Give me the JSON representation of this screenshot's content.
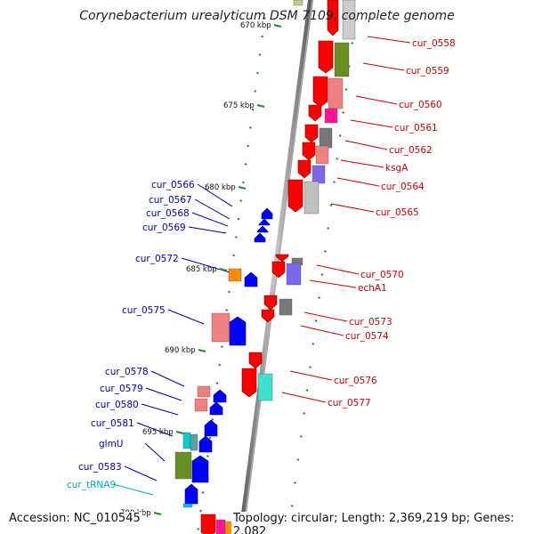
{
  "title": "Corynebacterium urealyticum DSM 7109, complete genome",
  "accession": "Accession: NC_010545",
  "topology": "Topology: circular; Length: 2,369,219 bp; Genes: 2,082",
  "kbp_labels": [
    "670 kbp",
    "675 kbp",
    "680 kbp",
    "685 kbp",
    "690 kbp",
    "695 kbp",
    "700 kbp"
  ],
  "right_genes": [
    "cur_0558",
    "cur_0559",
    "cur_0560",
    "cur_0561",
    "cur_0562",
    "ksgA",
    "cur_0564",
    "cur_0565",
    "cur_0570",
    "echA1",
    "cur_0573",
    "cur_0574",
    "cur_0576",
    "cur_0577"
  ],
  "left_genes": [
    "cur_0566",
    "cur_0567",
    "cur_0568",
    "cur_0569",
    "cur_0572",
    "cur_0575",
    "cur_0578",
    "cur_0579",
    "cur_0580",
    "cur_0581",
    "glmU",
    "cur_0583",
    "cur_tRNA9"
  ],
  "colors": {
    "right_label": "#cc0000",
    "left_label": "#0000aa",
    "trna_label": "#00aacc",
    "tick": "#228b22",
    "backbone": "#8a8a8a"
  }
}
